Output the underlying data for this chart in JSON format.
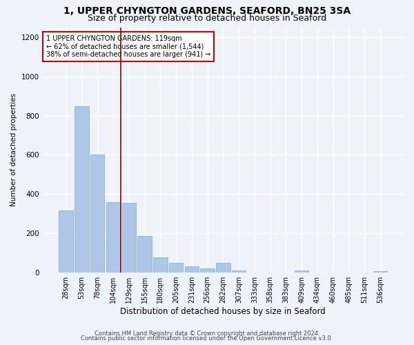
{
  "title1": "1, UPPER CHYNGTON GARDENS, SEAFORD, BN25 3SA",
  "title2": "Size of property relative to detached houses in Seaford",
  "xlabel": "Distribution of detached houses by size in Seaford",
  "ylabel": "Number of detached properties",
  "bar_labels": [
    "28sqm",
    "53sqm",
    "78sqm",
    "104sqm",
    "129sqm",
    "155sqm",
    "180sqm",
    "205sqm",
    "231sqm",
    "256sqm",
    "282sqm",
    "307sqm",
    "333sqm",
    "358sqm",
    "383sqm",
    "409sqm",
    "434sqm",
    "460sqm",
    "485sqm",
    "511sqm",
    "536sqm"
  ],
  "bar_values": [
    315,
    850,
    600,
    360,
    355,
    185,
    75,
    50,
    30,
    20,
    50,
    10,
    0,
    0,
    0,
    10,
    0,
    0,
    0,
    0,
    5
  ],
  "bar_color": "#aec6e8",
  "bar_edge_color": "#7aaad0",
  "vline_x_index": 3.48,
  "vline_color": "#8b0000",
  "annotation_text": "1 UPPER CHYNGTON GARDENS: 119sqm\n← 62% of detached houses are smaller (1,544)\n38% of semi-detached houses are larger (941) →",
  "annotation_box_color": "white",
  "annotation_box_edge_color": "#cc0000",
  "ylim": [
    0,
    1250
  ],
  "yticks": [
    0,
    200,
    400,
    600,
    800,
    1000,
    1200
  ],
  "footer1": "Contains HM Land Registry data © Crown copyright and database right 2024.",
  "footer2": "Contains public sector information licensed under the Open Government Licence v3.0.",
  "bg_color": "#eef2f9",
  "grid_color": "white",
  "title1_fontsize": 10,
  "title2_fontsize": 9,
  "ylabel_fontsize": 7.5,
  "xlabel_fontsize": 8.5,
  "tick_fontsize": 7,
  "annotation_fontsize": 7,
  "footer_fontsize": 6
}
